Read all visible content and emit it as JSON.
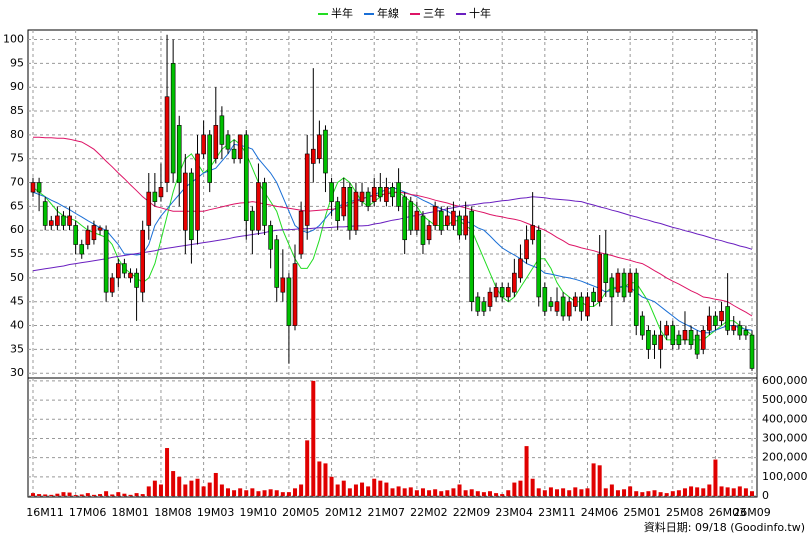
{
  "chart_data": {
    "type": "candlestick",
    "legend": "top",
    "grid": true,
    "up_color": "#e60000",
    "down_color": "#00c000",
    "ylim": [
      29,
      102
    ],
    "yticks": [
      30,
      35,
      40,
      45,
      50,
      55,
      60,
      65,
      70,
      75,
      80,
      85,
      90,
      95,
      100
    ],
    "categories": [
      "16M11",
      null,
      null,
      null,
      null,
      null,
      null,
      "17M06",
      null,
      null,
      null,
      null,
      null,
      null,
      "18M01",
      null,
      null,
      null,
      null,
      null,
      null,
      "18M08",
      null,
      null,
      null,
      null,
      null,
      null,
      "19M03",
      null,
      null,
      null,
      null,
      null,
      null,
      "19M10",
      null,
      null,
      null,
      null,
      null,
      null,
      "20M05",
      null,
      null,
      null,
      null,
      null,
      null,
      "20M12",
      null,
      null,
      null,
      null,
      null,
      null,
      "21M07",
      null,
      null,
      null,
      null,
      null,
      null,
      "22M02",
      null,
      null,
      null,
      null,
      null,
      null,
      "22M09",
      null,
      null,
      null,
      null,
      null,
      null,
      "23M04",
      null,
      null,
      null,
      null,
      null,
      null,
      "23M11",
      null,
      null,
      null,
      null,
      null,
      null,
      "24M06",
      null,
      null,
      null,
      null,
      null,
      null,
      "25M01",
      null,
      null,
      null,
      null,
      null,
      null,
      "25M08",
      null,
      null,
      null,
      null,
      null,
      null,
      "26M03",
      null,
      null,
      null,
      null,
      null,
      "26M09"
    ],
    "open": [
      68,
      70,
      66,
      61,
      61,
      63,
      61,
      61,
      57,
      57,
      58,
      60,
      60,
      47,
      50,
      53,
      50,
      51,
      47,
      61,
      68,
      67,
      70,
      95,
      82,
      60,
      72,
      60,
      76,
      80,
      75,
      84,
      80,
      77,
      75,
      80,
      64,
      60,
      70,
      61,
      58,
      47,
      50,
      40,
      55,
      61,
      74,
      75,
      81,
      70,
      66,
      63,
      69,
      60,
      66,
      68,
      66,
      69,
      66,
      69,
      70,
      67,
      66,
      60,
      63,
      58,
      61,
      64,
      61,
      61,
      63,
      59,
      64,
      46,
      45,
      44,
      46,
      48,
      46,
      47,
      50,
      54,
      58,
      60,
      48,
      45,
      43,
      46,
      42,
      44,
      46,
      42,
      47,
      45,
      55,
      50,
      47,
      51,
      47,
      51,
      42,
      39,
      38,
      35,
      38,
      40,
      38,
      37,
      39,
      38,
      35,
      39,
      42,
      41,
      44,
      39,
      40,
      39,
      38
    ],
    "high": [
      71,
      71,
      67,
      63,
      65,
      64,
      65,
      62,
      58,
      61,
      62,
      61,
      61,
      51,
      54,
      54,
      52,
      52,
      62,
      72,
      72,
      74,
      101,
      100,
      84,
      76,
      73,
      80,
      83,
      81,
      90,
      86,
      81,
      79,
      80,
      81,
      65,
      74,
      71,
      62,
      59,
      56,
      51,
      57,
      66,
      80,
      94,
      83,
      82,
      71,
      67,
      71,
      70,
      70,
      70,
      69,
      71,
      72,
      71,
      70,
      73,
      68,
      67,
      66,
      64,
      62,
      66,
      65,
      65,
      66,
      64,
      66,
      65,
      47,
      46,
      48,
      49,
      49,
      49,
      54,
      57,
      61,
      68,
      61,
      49,
      46,
      48,
      47,
      46,
      47,
      47,
      47,
      48,
      59,
      60,
      51,
      52,
      52,
      52,
      52,
      43,
      40,
      39,
      41,
      41,
      41,
      39,
      43,
      40,
      39,
      40,
      44,
      43,
      45,
      51,
      42,
      41,
      40,
      39
    ],
    "low": [
      67,
      64,
      60,
      60,
      60,
      60,
      60,
      55,
      54,
      56,
      57,
      59,
      45,
      46,
      48,
      50,
      49,
      41,
      45,
      58,
      65,
      66,
      68,
      70,
      65,
      55,
      53,
      57,
      75,
      68,
      74,
      75,
      76,
      74,
      74,
      58,
      55,
      59,
      59,
      52,
      45,
      45,
      32,
      39,
      54,
      58,
      70,
      74,
      68,
      63,
      60,
      62,
      58,
      59,
      65,
      64,
      65,
      66,
      65,
      65,
      64,
      55,
      59,
      59,
      55,
      57,
      60,
      59,
      60,
      60,
      58,
      58,
      43,
      42,
      42,
      43,
      45,
      45,
      45,
      46,
      49,
      53,
      57,
      44,
      42,
      43,
      42,
      41,
      41,
      43,
      41,
      41,
      44,
      44,
      46,
      40,
      46,
      45,
      46,
      38,
      37,
      33,
      33,
      31,
      37,
      35,
      35,
      36,
      35,
      33,
      34,
      38,
      39,
      40,
      38,
      38,
      37,
      37,
      30.5
    ],
    "close": [
      70,
      68,
      61,
      62,
      63,
      61,
      63,
      57,
      55,
      60,
      61,
      60.5,
      47,
      50,
      53,
      51,
      51,
      48,
      60,
      68,
      66,
      69,
      88,
      72,
      70,
      72,
      58,
      76,
      80,
      70,
      82,
      78,
      77,
      75,
      80,
      62,
      60,
      70,
      61,
      56,
      48,
      50,
      40,
      53,
      64,
      76,
      77,
      80,
      72,
      66,
      62,
      69,
      60,
      68,
      68,
      65,
      69,
      67,
      69,
      67,
      65,
      58,
      60,
      64,
      57,
      61,
      65,
      60,
      63,
      64,
      59,
      63,
      45,
      43,
      43,
      47,
      48,
      46,
      48,
      51,
      54,
      58,
      61,
      46,
      43,
      44,
      45,
      42,
      45,
      46,
      43,
      46,
      45,
      55,
      49,
      46,
      51,
      46,
      51,
      40,
      38,
      35,
      36,
      38,
      40,
      36,
      36,
      39,
      36,
      34,
      39,
      42,
      40,
      43,
      39,
      40,
      38,
      38,
      31
    ],
    "lines": [
      {
        "name": "半年",
        "color": "#22dd22",
        "values": [
          69,
          68,
          67,
          65.5,
          64,
          63,
          62.5,
          62,
          61,
          60,
          59.5,
          59,
          58.5,
          57,
          54,
          52,
          51,
          50,
          49,
          50,
          53,
          58,
          63,
          68,
          72,
          75,
          76,
          74,
          72,
          73,
          75,
          77,
          78,
          79,
          78,
          76,
          73,
          70,
          68,
          66,
          64,
          60,
          57,
          54,
          52,
          52,
          54,
          58,
          63,
          67,
          70,
          71,
          70,
          68,
          66,
          65,
          66,
          67,
          68,
          68,
          68,
          67,
          66,
          65,
          63,
          62,
          61,
          61,
          61,
          62,
          62,
          61,
          60,
          57,
          54,
          51,
          48,
          46,
          45,
          46,
          48,
          50,
          52,
          54,
          54,
          52,
          49,
          47,
          46,
          45,
          45,
          44,
          44,
          45,
          47,
          48,
          48,
          48,
          49,
          49,
          47,
          45,
          42,
          39,
          37,
          37,
          37,
          37,
          37,
          37,
          37,
          38,
          39,
          40,
          41,
          41,
          40,
          39,
          38
        ]
      },
      {
        "name": "年線",
        "color": "#1a6fd6",
        "values": [
          68,
          67.5,
          67,
          66.3,
          65.7,
          65,
          64.3,
          63.5,
          62.8,
          62,
          61.3,
          60.5,
          60,
          58.5,
          57,
          55,
          55,
          54.8,
          55,
          57,
          61,
          63,
          64.5,
          66,
          67.5,
          69,
          70,
          71,
          72,
          72.5,
          73,
          74.5,
          76,
          78,
          77.8,
          77.5,
          77,
          75,
          73.5,
          72,
          70,
          67,
          64,
          61,
          60,
          59.5,
          60,
          61,
          62.5,
          64,
          65,
          65.5,
          66,
          66.3,
          66.7,
          67,
          67.5,
          68,
          68.5,
          69,
          68.5,
          68,
          67.5,
          67,
          66.3,
          65.7,
          65,
          64.5,
          64,
          63.3,
          62.5,
          62,
          61.3,
          60.5,
          60,
          58.8,
          57.5,
          56.3,
          55.5,
          54.8,
          54,
          53,
          52.5,
          52,
          51,
          50.8,
          50.5,
          50.2,
          50,
          49.7,
          49.3,
          48.8,
          48.3,
          47.8,
          47,
          47.5,
          48,
          48.3,
          48,
          47,
          46,
          45.5,
          45,
          44,
          43,
          42,
          41,
          40.3,
          39.7,
          39,
          38.5,
          38.5,
          39,
          39.5,
          40,
          40,
          39.5,
          39.2,
          39
        ]
      },
      {
        "name": "三年",
        "color": "#dd1466",
        "values": [
          79.5,
          79.5,
          79.4,
          79.4,
          79.3,
          79.3,
          79.1,
          78.8,
          78.5,
          77.8,
          77,
          75.8,
          74.5,
          73.3,
          72,
          70.8,
          69.5,
          68.3,
          67,
          66,
          65,
          64.7,
          64.3,
          64,
          64,
          64,
          64,
          64,
          64,
          64.3,
          64.6,
          64.9,
          65.2,
          65.5,
          65.7,
          65.8,
          66,
          65.8,
          65.5,
          65.3,
          65,
          64.8,
          64.6,
          64.4,
          64.2,
          64,
          64.1,
          64.2,
          64.3,
          64.4,
          64.5,
          65,
          65.5,
          66,
          66.5,
          67,
          67.2,
          67.4,
          67.6,
          67.8,
          68,
          67.8,
          67.5,
          67.3,
          67,
          66.7,
          66.3,
          66,
          65.7,
          65.3,
          65,
          64.7,
          64.3,
          64,
          63.7,
          63.3,
          63,
          62.8,
          62.5,
          62.3,
          62,
          61.5,
          61,
          60.5,
          60,
          59.3,
          58.5,
          57.8,
          57,
          56.7,
          56.3,
          56,
          55.7,
          55.3,
          55,
          54.7,
          54.3,
          54,
          53.7,
          53.3,
          53,
          52.3,
          51.5,
          50.8,
          50,
          49.3,
          48.7,
          48,
          47.3,
          46.7,
          46,
          45.8,
          45.5,
          45.3,
          45,
          44.2,
          43.5,
          42.8,
          42
        ]
      },
      {
        "name": "十年",
        "color": "#6a1fc0",
        "values": [
          51.5,
          51.7,
          51.9,
          52.1,
          52.3,
          52.5,
          52.8,
          53,
          53.2,
          53.4,
          53.6,
          53.8,
          54,
          54.3,
          54.5,
          54.7,
          54.9,
          55.1,
          55.3,
          55.5,
          55.7,
          56,
          56.2,
          56.4,
          56.6,
          56.8,
          57,
          57.2,
          57.4,
          57.6,
          57.8,
          58,
          58.2,
          58.5,
          58.7,
          58.9,
          59.1,
          59.3,
          59.5,
          59.8,
          60,
          60.1,
          60.1,
          60.2,
          60.3,
          60.3,
          60.4,
          60.5,
          60.5,
          60.6,
          60.7,
          60.7,
          60.8,
          60.9,
          60.9,
          61,
          61.3,
          61.5,
          61.8,
          62.1,
          62.3,
          62.6,
          62.9,
          63.1,
          63.4,
          63.7,
          63.9,
          64.2,
          64.5,
          64.7,
          65,
          65.2,
          65.3,
          65.5,
          65.7,
          65.8,
          66,
          66.2,
          66.3,
          66.5,
          66.7,
          66.8,
          67,
          66.9,
          66.8,
          66.6,
          66.5,
          66.4,
          66.3,
          66.1,
          66,
          65.6,
          65.3,
          64.9,
          64.6,
          64.2,
          63.9,
          63.5,
          63.1,
          62.8,
          62.4,
          62.1,
          61.7,
          61.4,
          61,
          60.6,
          60.3,
          59.9,
          59.6,
          59.2,
          58.9,
          58.5,
          58.1,
          57.8,
          57.4,
          57.1,
          56.7,
          56.4,
          56
        ]
      }
    ],
    "volume": {
      "color": "#e00000",
      "ylim": [
        0,
        615000
      ],
      "yticks": [
        0,
        {
          "value": 100000,
          "label": "100,000"
        },
        {
          "value": 200000,
          "label": "200,000"
        },
        {
          "value": 300000,
          "label": "300,000"
        },
        {
          "value": 400000,
          "label": "400,000"
        },
        {
          "value": 500000,
          "label": "500,000"
        },
        {
          "value": 600000,
          "label": "600,000"
        }
      ],
      "values": [
        15000,
        10000,
        8000,
        6000,
        12000,
        20000,
        18000,
        5000,
        8000,
        15000,
        6000,
        10000,
        25000,
        8000,
        20000,
        12000,
        6000,
        15000,
        10000,
        50000,
        80000,
        60000,
        250000,
        130000,
        100000,
        60000,
        80000,
        90000,
        50000,
        70000,
        120000,
        60000,
        40000,
        30000,
        40000,
        30000,
        40000,
        25000,
        30000,
        35000,
        30000,
        20000,
        20000,
        40000,
        60000,
        290000,
        600000,
        180000,
        170000,
        100000,
        60000,
        80000,
        40000,
        60000,
        70000,
        50000,
        90000,
        80000,
        70000,
        40000,
        50000,
        40000,
        45000,
        30000,
        40000,
        30000,
        35000,
        25000,
        30000,
        40000,
        60000,
        30000,
        35000,
        25000,
        20000,
        25000,
        15000,
        10000,
        30000,
        70000,
        80000,
        260000,
        90000,
        40000,
        30000,
        45000,
        35000,
        40000,
        30000,
        45000,
        35000,
        40000,
        170000,
        160000,
        40000,
        60000,
        30000,
        35000,
        50000,
        25000,
        20000,
        25000,
        30000,
        20000,
        15000,
        25000,
        30000,
        40000,
        50000,
        45000,
        40000,
        60000,
        190000,
        50000,
        45000,
        40000,
        50000,
        40000,
        25000
      ]
    },
    "footer": "資料日期: 09/18 (Goodinfo.tw)"
  }
}
